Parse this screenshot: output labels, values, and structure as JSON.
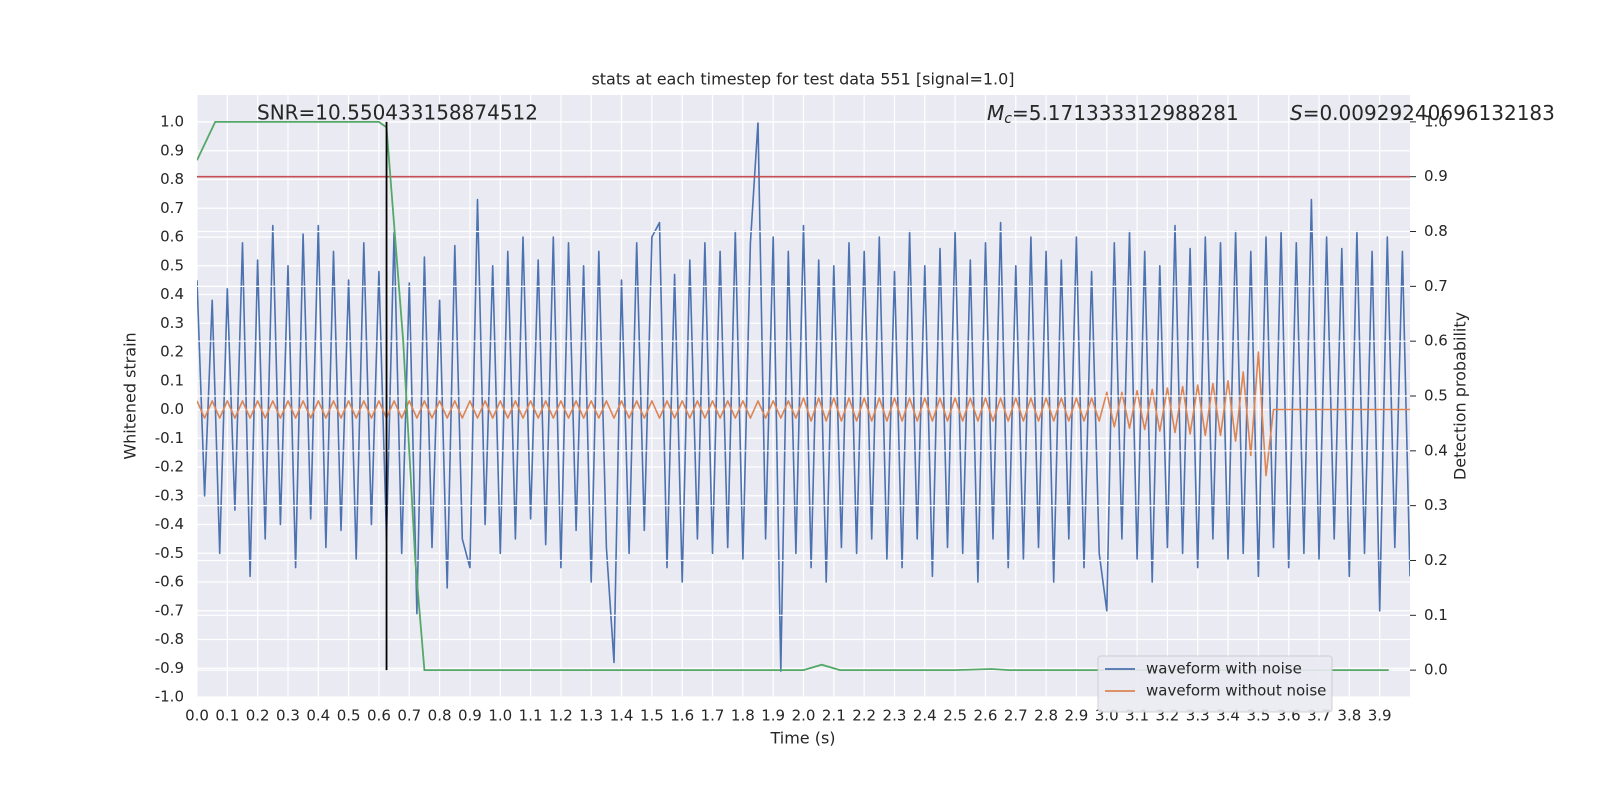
{
  "chart_data": {
    "type": "line",
    "title": "stats at each timestep for test data 551 [signal=1.0]",
    "x_label": "Time (s)",
    "y_label": "Whitened strain",
    "y2_label": "Detection probability",
    "annotations": [
      {
        "text": "SNR=10.550433158874512"
      },
      {
        "symbol": "M",
        "subscript": "c",
        "text": "=5.171333312988281"
      },
      {
        "symbol": "S",
        "text": "=0.00929240696132183"
      }
    ],
    "xlim": [
      0,
      4.0
    ],
    "ylim": [
      -1.0,
      1.094
    ],
    "y2lim": [
      -0.049,
      1.049
    ],
    "xticks": [
      {
        "value": 0,
        "label": "0.0"
      },
      0.1,
      0.2,
      0.3,
      0.4,
      0.5,
      0.6,
      0.7,
      0.8,
      0.9,
      {
        "value": 1,
        "label": "1.0"
      },
      1.1,
      1.2,
      1.3,
      1.4,
      1.5,
      1.6,
      1.7,
      1.8,
      1.9,
      {
        "value": 2,
        "label": "2.0"
      },
      2.1,
      2.2,
      2.3,
      2.4,
      2.5,
      2.6,
      2.7,
      2.8,
      2.9,
      {
        "value": 3,
        "label": "3.0"
      },
      3.1,
      3.2,
      3.3,
      3.4,
      3.5,
      3.6,
      3.7,
      3.8,
      3.9
    ],
    "yticks": [
      {
        "value": -1,
        "label": "-1.0"
      },
      -0.9,
      -0.8,
      -0.7,
      -0.6,
      -0.5,
      -0.4,
      -0.3,
      -0.2,
      -0.1,
      {
        "value": 0,
        "label": "0.0"
      },
      0.1,
      0.2,
      0.3,
      0.4,
      0.5,
      0.6,
      0.7,
      0.8,
      0.9,
      {
        "value": 1,
        "label": "1.0"
      }
    ],
    "y2ticks": [
      {
        "value": 0,
        "label": "0.0"
      },
      0.1,
      0.2,
      0.3,
      0.4,
      0.5,
      0.6,
      0.7,
      0.8,
      0.9,
      {
        "value": 1,
        "label": "1.0"
      }
    ],
    "grid": true,
    "legend": "lower right",
    "x": [
      0,
      0.025,
      0.05,
      0.075,
      0.1,
      0.125,
      0.15,
      0.175,
      0.2,
      0.225,
      0.25,
      0.275,
      0.3,
      0.325,
      0.35,
      0.375,
      0.4,
      0.425,
      0.45,
      0.475,
      0.5,
      0.525,
      0.55,
      0.575,
      0.6,
      0.625,
      0.65,
      0.675,
      0.7,
      0.725,
      0.75,
      0.775,
      0.8,
      0.825,
      0.85,
      0.875,
      0.9,
      0.925,
      0.95,
      0.975,
      1,
      1.025,
      1.05,
      1.075,
      1.1,
      1.125,
      1.15,
      1.175,
      1.2,
      1.225,
      1.25,
      1.275,
      1.3,
      1.325,
      1.35,
      1.375,
      1.4,
      1.425,
      1.45,
      1.475,
      1.5,
      1.525,
      1.55,
      1.575,
      1.6,
      1.625,
      1.65,
      1.675,
      1.7,
      1.725,
      1.75,
      1.775,
      1.8,
      1.825,
      1.85,
      1.875,
      1.9,
      1.925,
      1.95,
      1.975,
      2,
      2.025,
      2.05,
      2.075,
      2.1,
      2.125,
      2.15,
      2.175,
      2.2,
      2.225,
      2.25,
      2.275,
      2.3,
      2.325,
      2.35,
      2.375,
      2.4,
      2.425,
      2.45,
      2.475,
      2.5,
      2.525,
      2.55,
      2.575,
      2.6,
      2.625,
      2.65,
      2.675,
      2.7,
      2.725,
      2.75,
      2.775,
      2.8,
      2.825,
      2.85,
      2.875,
      2.9,
      2.925,
      2.95,
      2.975,
      3,
      3.025,
      3.05,
      3.075,
      3.1,
      3.125,
      3.15,
      3.175,
      3.2,
      3.225,
      3.25,
      3.275,
      3.3,
      3.325,
      3.35,
      3.375,
      3.4,
      3.425,
      3.45,
      3.475,
      3.5,
      3.525,
      3.55,
      3.575,
      3.6,
      3.625,
      3.65,
      3.675,
      3.7,
      3.725,
      3.75,
      3.775,
      3.8,
      3.825,
      3.85,
      3.875,
      3.9,
      3.925,
      3.95,
      3.975,
      4
    ],
    "series": [
      {
        "name": "waveform with noise",
        "color": "#4c72b0",
        "values": [
          0.45,
          -0.3,
          0.38,
          -0.5,
          0.42,
          -0.35,
          0.58,
          -0.58,
          0.52,
          -0.45,
          0.64,
          -0.4,
          0.5,
          -0.55,
          0.61,
          -0.38,
          0.64,
          -0.48,
          0.55,
          -0.42,
          0.45,
          -0.52,
          0.58,
          -0.4,
          0.48,
          -0.45,
          0.62,
          -0.5,
          0.44,
          -0.71,
          0.53,
          -0.48,
          0.38,
          -0.62,
          0.57,
          -0.45,
          -0.55,
          0.73,
          -0.4,
          0.5,
          -0.5,
          0.55,
          -0.45,
          0.6,
          -0.38,
          0.52,
          -0.47,
          0.6,
          -0.55,
          0.58,
          -0.42,
          0.5,
          -0.6,
          0.55,
          -0.48,
          -0.88,
          0.45,
          -0.5,
          0.58,
          -0.42,
          0.6,
          0.65,
          -0.55,
          0.47,
          -0.6,
          0.52,
          -0.45,
          0.58,
          -0.5,
          0.55,
          -0.48,
          0.62,
          -0.52,
          0.58,
          1.0,
          -0.45,
          0.6,
          -0.91,
          0.55,
          -0.5,
          0.64,
          -0.55,
          0.52,
          -0.6,
          0.5,
          -0.48,
          0.58,
          -0.5,
          0.55,
          -0.45,
          0.6,
          -0.52,
          0.48,
          -0.55,
          0.62,
          -0.45,
          0.5,
          -0.58,
          0.56,
          -0.48,
          0.62,
          -0.5,
          0.52,
          -0.6,
          0.58,
          -0.45,
          0.65,
          -0.55,
          0.5,
          -0.52,
          0.6,
          -0.48,
          0.55,
          -0.6,
          0.52,
          -0.45,
          0.6,
          -0.55,
          0.48,
          -0.5,
          -0.7,
          0.58,
          -0.45,
          0.62,
          -0.52,
          0.55,
          -0.6,
          0.5,
          -0.48,
          0.64,
          -0.5,
          0.56,
          -0.55,
          0.6,
          -0.45,
          0.58,
          -0.52,
          0.62,
          -0.5,
          0.55,
          -0.58,
          0.6,
          -0.48,
          0.62,
          -0.55,
          0.58,
          -0.5,
          0.73,
          -0.52,
          0.6,
          -0.45,
          0.56,
          -0.58,
          0.62,
          -0.5,
          0.55,
          -0.7,
          0.6,
          -0.48,
          0.55,
          -0.58
        ]
      },
      {
        "name": "waveform without noise",
        "color": "#dd8452",
        "values": [
          0.03,
          -0.03,
          0.03,
          -0.03,
          0.03,
          -0.03,
          0.03,
          -0.03,
          0.03,
          -0.03,
          0.03,
          -0.03,
          0.03,
          -0.03,
          0.03,
          -0.03,
          0.03,
          -0.03,
          0.03,
          -0.03,
          0.03,
          -0.03,
          0.03,
          -0.03,
          0.03,
          -0.03,
          0.03,
          -0.03,
          0.03,
          -0.03,
          0.03,
          -0.03,
          0.03,
          -0.03,
          0.03,
          -0.03,
          0.03,
          -0.03,
          0.03,
          -0.03,
          0.03,
          -0.03,
          0.03,
          -0.03,
          0.03,
          -0.03,
          0.03,
          -0.03,
          0.03,
          -0.03,
          0.03,
          -0.03,
          0.03,
          -0.03,
          0.03,
          -0.03,
          0.03,
          -0.03,
          0.03,
          -0.03,
          0.03,
          -0.03,
          0.03,
          -0.03,
          0.03,
          -0.03,
          0.03,
          -0.03,
          0.03,
          -0.03,
          0.03,
          -0.03,
          0.03,
          -0.03,
          0.03,
          -0.03,
          0.03,
          -0.03,
          0.03,
          -0.03,
          0.04,
          -0.04,
          0.04,
          -0.04,
          0.04,
          -0.04,
          0.04,
          -0.04,
          0.04,
          -0.04,
          0.04,
          -0.04,
          0.04,
          -0.04,
          0.04,
          -0.04,
          0.04,
          -0.04,
          0.04,
          -0.04,
          0.04,
          -0.04,
          0.04,
          -0.04,
          0.04,
          -0.04,
          0.04,
          -0.04,
          0.04,
          -0.04,
          0.04,
          -0.04,
          0.04,
          -0.04,
          0.04,
          -0.04,
          0.04,
          -0.04,
          0.04,
          -0.04,
          0.06,
          -0.06,
          0.06,
          -0.065,
          0.065,
          -0.07,
          0.07,
          -0.075,
          0.075,
          -0.08,
          0.08,
          -0.085,
          0.085,
          -0.09,
          0.09,
          -0.09,
          0.1,
          -0.11,
          0.13,
          -0.16,
          0.2,
          -0.23,
          0,
          0,
          0,
          0,
          0,
          0,
          0,
          0,
          0,
          0,
          0,
          0,
          0,
          0,
          0,
          0,
          0,
          0,
          0
        ]
      }
    ],
    "detection_probability": {
      "color": "#55a868",
      "axis": "y2",
      "x": [
        0,
        0.06,
        0.125,
        0.6,
        0.625,
        0.68,
        0.72,
        0.75,
        1.0,
        2.0,
        2.06,
        2.12,
        2.5,
        2.62,
        2.68,
        3.93
      ],
      "values": [
        0.93,
        1.0,
        1.0,
        1.0,
        0.99,
        0.6,
        0.2,
        0.0,
        0.0,
        0.0,
        0.01,
        0.0,
        0.0,
        0.002,
        0.0,
        0.0
      ]
    },
    "threshold": {
      "value": 0.9,
      "axis": "y2",
      "color": "#c44e52"
    },
    "marker": {
      "x": 0.625,
      "y2": [
        0,
        1.0
      ],
      "color": "#000000"
    }
  }
}
